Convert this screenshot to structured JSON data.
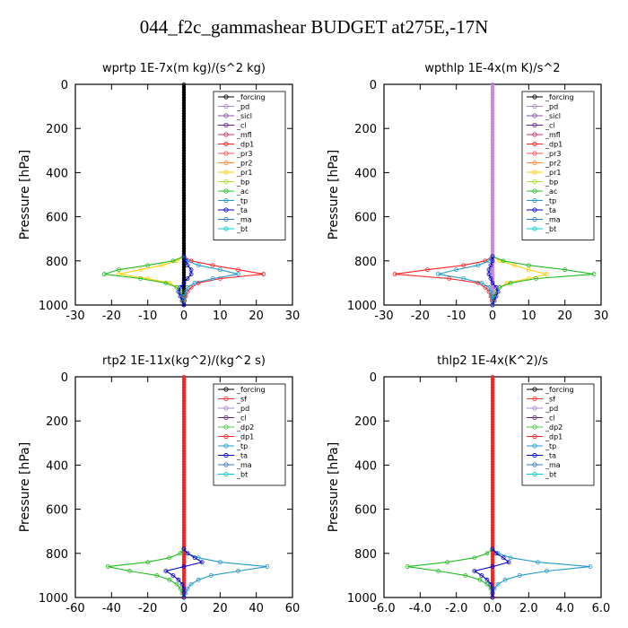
{
  "title": "044_f2c_gammashear  BUDGET at275E,-17N",
  "chart_data": [
    {
      "type": "line",
      "title": "wprtp  1E-7x(m kg)/(s^2 kg)",
      "ylabel": "Pressure [hPa]",
      "xlim": [
        -30,
        30
      ],
      "ylim": [
        1000,
        0
      ],
      "x_ticks": [
        "-30",
        "-20",
        "-10",
        "0",
        "10",
        "20",
        "30"
      ],
      "y_ticks": [
        "0",
        "200",
        "400",
        "600",
        "800",
        "1000"
      ],
      "pressure": [
        780,
        800,
        820,
        840,
        860,
        880,
        900,
        920,
        940,
        960,
        980,
        1000
      ],
      "legend": [
        "_forcing",
        "_pd",
        "_sicl",
        "_cl",
        "_mfl",
        "_dp1",
        "_pr3",
        "_pr2",
        "_pr1",
        "_bp",
        "_ac",
        "_tp",
        "_ta",
        "_ma",
        "_bt"
      ],
      "series": [
        {
          "name": "_forcing",
          "color": "#000000",
          "values": [
            0,
            0,
            0,
            0,
            0,
            0,
            0,
            0,
            0,
            0,
            0,
            0
          ]
        },
        {
          "name": "_dp1",
          "color": "#ff2020",
          "values": [
            0,
            2,
            8,
            15,
            22,
            10,
            4,
            2,
            1,
            0.5,
            0.2,
            0
          ]
        },
        {
          "name": "_pr1",
          "color": "#ffd000",
          "values": [
            0,
            -2,
            -6,
            -12,
            -18,
            -10,
            -4,
            -2,
            -1,
            -0.5,
            -0.2,
            0
          ]
        },
        {
          "name": "_ac",
          "color": "#22bb22",
          "values": [
            0,
            -3,
            -10,
            -18,
            -22,
            -12,
            -5,
            -2,
            -1,
            -0.5,
            0,
            0
          ]
        },
        {
          "name": "_tp",
          "color": "#2299cc",
          "values": [
            0,
            1,
            4,
            10,
            15,
            8,
            3,
            1,
            0.5,
            0.2,
            0,
            0
          ]
        },
        {
          "name": "_ta",
          "color": "#0000cc",
          "values": [
            0,
            0.5,
            1,
            2,
            2,
            1,
            0,
            -1,
            -1.5,
            -1,
            -0.5,
            0
          ]
        }
      ]
    },
    {
      "type": "line",
      "title": "wpthlp  1E-4x(m K)/s^2",
      "ylabel": "Pressure [hPa]",
      "xlim": [
        -30,
        30
      ],
      "ylim": [
        1000,
        0
      ],
      "x_ticks": [
        "-30",
        "-20",
        "-10",
        "0",
        "10",
        "20",
        "30"
      ],
      "y_ticks": [
        "0",
        "200",
        "400",
        "600",
        "800",
        "1000"
      ],
      "pressure": [
        780,
        800,
        820,
        840,
        860,
        880,
        900,
        920,
        940,
        960,
        980,
        1000
      ],
      "legend": [
        "_forcing",
        "_pd",
        "_sicl",
        "_cl",
        "_mfl",
        "_dp1",
        "_pr3",
        "_pr2",
        "_pr1",
        "_bp",
        "_ac",
        "_tp",
        "_ta",
        "_ma",
        "_bt"
      ],
      "series": [
        {
          "name": "_forcing",
          "color": "#cc88dd",
          "values": [
            0,
            0,
            0,
            0,
            0,
            0,
            0,
            0,
            0,
            0,
            0,
            0
          ]
        },
        {
          "name": "_dp1",
          "color": "#ff2020",
          "values": [
            0,
            -2,
            -8,
            -18,
            -27,
            -12,
            -4,
            -2,
            -1,
            -0.5,
            -0.2,
            0
          ]
        },
        {
          "name": "_pr1",
          "color": "#ffd000",
          "values": [
            0,
            2,
            6,
            10,
            15,
            10,
            4,
            2,
            1,
            0.5,
            0.2,
            0
          ]
        },
        {
          "name": "_ac",
          "color": "#22bb22",
          "values": [
            0,
            3,
            10,
            20,
            28,
            12,
            5,
            2,
            1,
            0.5,
            0,
            0
          ]
        },
        {
          "name": "_tp",
          "color": "#2299cc",
          "values": [
            0,
            -1,
            -4,
            -10,
            -15,
            -8,
            -3,
            -1,
            -0.5,
            -0.2,
            0,
            0
          ]
        },
        {
          "name": "_ta",
          "color": "#0000cc",
          "values": [
            0,
            0,
            -0.5,
            -1,
            -1,
            -0.5,
            0,
            1,
            1.5,
            1,
            0.5,
            0
          ]
        }
      ]
    },
    {
      "type": "line",
      "title": "rtp2  1E-11x(kg^2)/(kg^2 s)",
      "ylabel": "Pressure [hPa]",
      "xlim": [
        -60,
        60
      ],
      "ylim": [
        1000,
        0
      ],
      "x_ticks": [
        "-60",
        "-40",
        "-20",
        "0",
        "20",
        "40",
        "60"
      ],
      "y_ticks": [
        "0",
        "200",
        "400",
        "600",
        "800",
        "1000"
      ],
      "pressure": [
        780,
        800,
        820,
        840,
        860,
        880,
        900,
        920,
        940,
        960,
        980,
        1000
      ],
      "legend": [
        "_forcing",
        "_sf",
        "_pd",
        "_cl",
        "_dp2",
        "_dp1",
        "_tp",
        "_ta",
        "_ma",
        "_bt"
      ],
      "series": [
        {
          "name": "_forcing",
          "color": "#ff2020",
          "values": [
            0,
            0,
            0,
            0,
            0,
            0,
            0,
            0,
            0,
            0,
            0,
            0
          ]
        },
        {
          "name": "_dp1",
          "color": "#22bb22",
          "values": [
            0,
            -2,
            -8,
            -20,
            -42,
            -30,
            -15,
            -8,
            -4,
            -2,
            -1,
            0
          ]
        },
        {
          "name": "_tp",
          "color": "#2299cc",
          "values": [
            0,
            2,
            8,
            20,
            46,
            30,
            15,
            8,
            4,
            2,
            1,
            0
          ]
        },
        {
          "name": "_ta",
          "color": "#0000cc",
          "values": [
            0,
            2,
            6,
            10,
            0,
            -10,
            -6,
            -3,
            -1,
            0,
            0,
            0
          ]
        }
      ]
    },
    {
      "type": "line",
      "title": "thlp2  1E-4x(K^2)/s",
      "ylabel": "Pressure [hPa]",
      "xlim": [
        -6,
        6
      ],
      "ylim": [
        1000,
        0
      ],
      "x_ticks": [
        "-6.0",
        "-4.0",
        "-2.0",
        "0.0",
        "2.0",
        "4.0",
        "6.0"
      ],
      "y_ticks": [
        "0",
        "200",
        "400",
        "600",
        "800",
        "1000"
      ],
      "pressure": [
        780,
        800,
        820,
        840,
        860,
        880,
        900,
        920,
        940,
        960,
        980,
        1000
      ],
      "legend": [
        "_forcing",
        "_sf",
        "_pd",
        "_cl",
        "_dp2",
        "_dp1",
        "_tp",
        "_ta",
        "_ma",
        "_bt"
      ],
      "series": [
        {
          "name": "_forcing",
          "color": "#ff2020",
          "values": [
            0,
            0,
            0,
            0,
            0,
            0,
            0,
            0,
            0,
            0,
            0,
            0
          ]
        },
        {
          "name": "_dp1",
          "color": "#22bb22",
          "values": [
            0,
            -0.3,
            -1,
            -2.5,
            -4.7,
            -3,
            -1.5,
            -0.7,
            -0.3,
            -0.1,
            0,
            0
          ]
        },
        {
          "name": "_tp",
          "color": "#2299cc",
          "values": [
            0,
            0.3,
            1,
            2.5,
            5.4,
            3,
            1.5,
            0.7,
            0.3,
            0.1,
            0,
            0
          ]
        },
        {
          "name": "_ta",
          "color": "#0000cc",
          "values": [
            0,
            0.2,
            0.6,
            0.9,
            0,
            -1,
            -0.6,
            -0.3,
            -0.1,
            0,
            0,
            0
          ]
        }
      ]
    }
  ]
}
